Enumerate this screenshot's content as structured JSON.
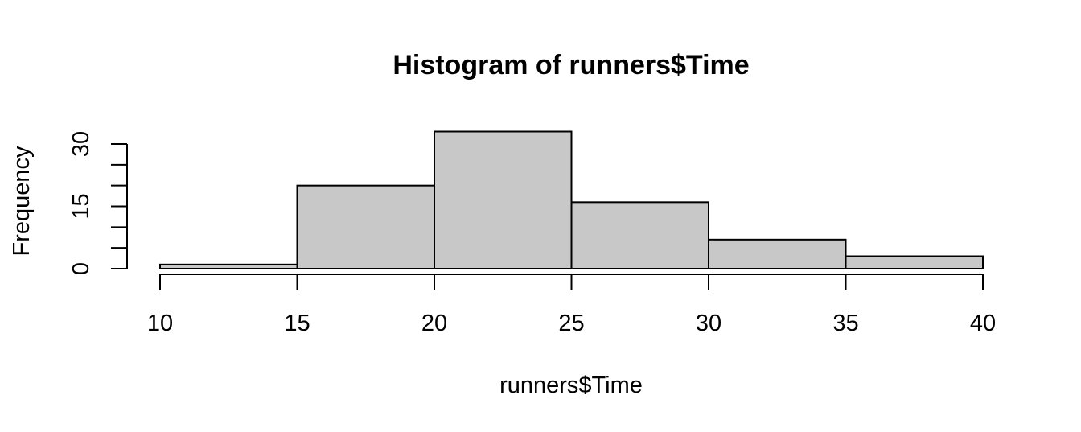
{
  "chart_data": {
    "type": "histogram",
    "title": "Histogram of runners$Time",
    "xlabel": "runners$Time",
    "ylabel": "Frequency",
    "bins": [
      {
        "from": 10,
        "to": 15,
        "count": 1
      },
      {
        "from": 15,
        "to": 20,
        "count": 20
      },
      {
        "from": 20,
        "to": 25,
        "count": 33
      },
      {
        "from": 25,
        "to": 30,
        "count": 16
      },
      {
        "from": 30,
        "to": 35,
        "count": 7
      },
      {
        "from": 35,
        "to": 40,
        "count": 3
      }
    ],
    "xlim": [
      10,
      40
    ],
    "ylim": [
      0,
      33
    ],
    "x_ticks": [
      10,
      15,
      20,
      25,
      30,
      35,
      40
    ],
    "y_ticks": [
      0,
      5,
      10,
      15,
      20,
      25,
      30
    ],
    "y_tick_labels": [
      {
        "value": 0,
        "label": "0"
      },
      {
        "value": 15,
        "label": "15"
      },
      {
        "value": 30,
        "label": "30"
      }
    ],
    "bar_color": "#c8c8c8",
    "border_color": "#000000",
    "grid": false,
    "legend": "none"
  }
}
